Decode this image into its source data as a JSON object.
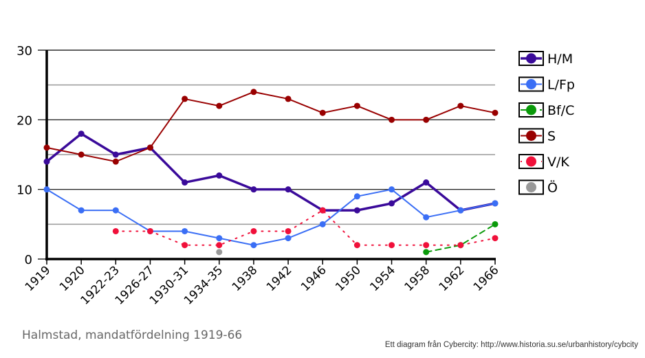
{
  "chart_data": {
    "type": "line",
    "title": "Halmstad, mandatfördelning 1919-66",
    "xlabel": "",
    "ylabel": "",
    "ylim": [
      0,
      30
    ],
    "yticks": [
      "0",
      "10",
      "20",
      "30"
    ],
    "grid": true,
    "legend_placement": "right",
    "categories": [
      "1919",
      "1920",
      "1922-23",
      "1926-27",
      "1930-31",
      "1934-35",
      "1938",
      "1942",
      "1946",
      "1950",
      "1954",
      "1958",
      "1962",
      "1966"
    ],
    "series": [
      {
        "name": "H/M",
        "color": "#3a0a9a",
        "style": "solid-thick",
        "values": [
          14,
          18,
          15,
          16,
          11,
          12,
          10,
          10,
          7,
          7,
          8,
          11,
          7,
          8
        ]
      },
      {
        "name": "L/Fp",
        "color": "#3a6ef5",
        "style": "solid",
        "values": [
          10,
          7,
          7,
          4,
          4,
          3,
          2,
          3,
          5,
          9,
          10,
          6,
          7,
          8
        ]
      },
      {
        "name": "Bf/C",
        "color": "#0a9a0a",
        "style": "dashed",
        "values": [
          null,
          null,
          null,
          null,
          null,
          null,
          null,
          null,
          null,
          null,
          null,
          1,
          2,
          5
        ]
      },
      {
        "name": "S",
        "color": "#990000",
        "style": "solid",
        "values": [
          16,
          15,
          14,
          16,
          23,
          22,
          24,
          23,
          21,
          22,
          20,
          20,
          22,
          21
        ]
      },
      {
        "name": "V/K",
        "color": "#f0103a",
        "style": "dotted",
        "values": [
          null,
          null,
          4,
          4,
          2,
          2,
          4,
          4,
          7,
          2,
          2,
          2,
          2,
          3
        ]
      },
      {
        "name": "Ö",
        "color": "#999999",
        "style": "none",
        "values": [
          null,
          null,
          null,
          null,
          null,
          1,
          null,
          null,
          null,
          null,
          null,
          null,
          null,
          null
        ]
      }
    ]
  },
  "credit": "Ett diagram från Cybercity: http://www.historia.su.se/urbanhistory/cybcity"
}
